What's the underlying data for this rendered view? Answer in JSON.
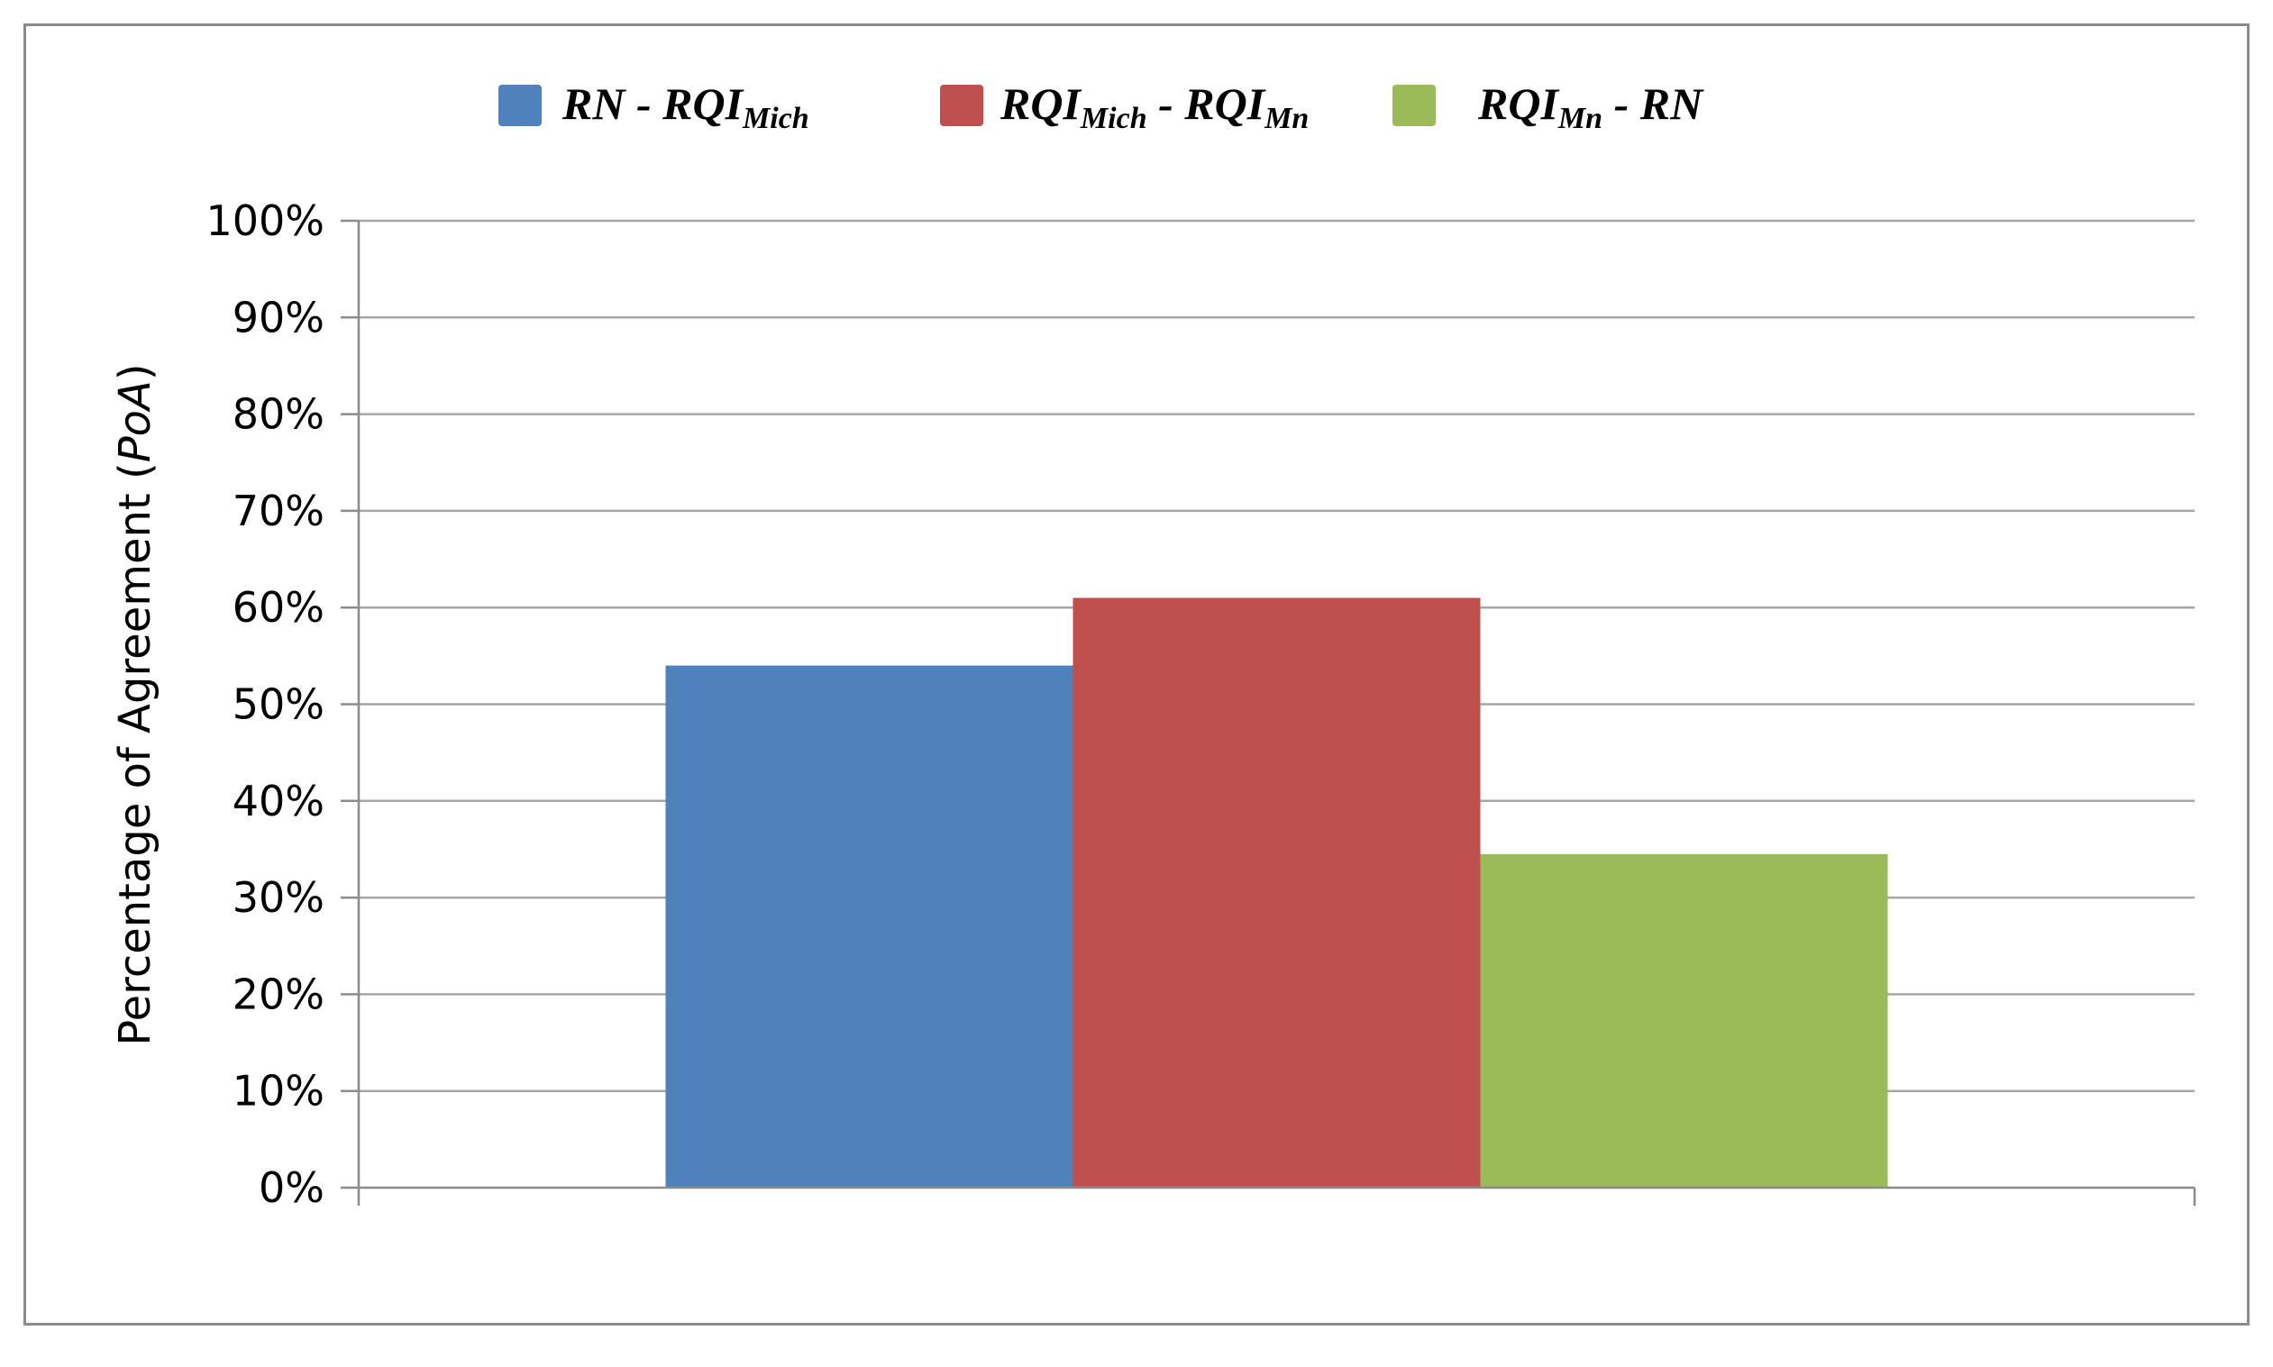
{
  "chart_data": {
    "type": "bar",
    "title": "",
    "xlabel": "",
    "ylabel": {
      "prefix": "Percentage of Agreement (",
      "emphasis": "PoA",
      "suffix": ")"
    },
    "ylim": [
      0,
      100
    ],
    "y_tick_labels": [
      "0%",
      "10%",
      "20%",
      "30%",
      "40%",
      "50%",
      "60%",
      "70%",
      "80%",
      "90%",
      "100%"
    ],
    "grid": true,
    "legend_position": "top",
    "categories": [
      ""
    ],
    "series": [
      {
        "name": "RN - RQIMich",
        "legend": {
          "main": "RN - RQI",
          "sub": "Mich",
          "tail": ""
        },
        "color": "#4f81bd",
        "values": [
          54
        ]
      },
      {
        "name": "RQIMich - RQIMn",
        "legend": {
          "main": "RQI",
          "sub": "Mich",
          "mid": " - RQI",
          "sub2": "Mn",
          "tail": ""
        },
        "color": "#c0504d",
        "values": [
          61
        ]
      },
      {
        "name": "RQIMn - RN",
        "legend": {
          "main": "RQI",
          "sub": "Mn",
          "tail": " - RN"
        },
        "color": "#9bbb59",
        "values": [
          34.5
        ]
      }
    ],
    "colors": {
      "gridline": "#a6a6a6",
      "axis": "#8c8c8c",
      "frame": "#8c8c8c"
    }
  }
}
